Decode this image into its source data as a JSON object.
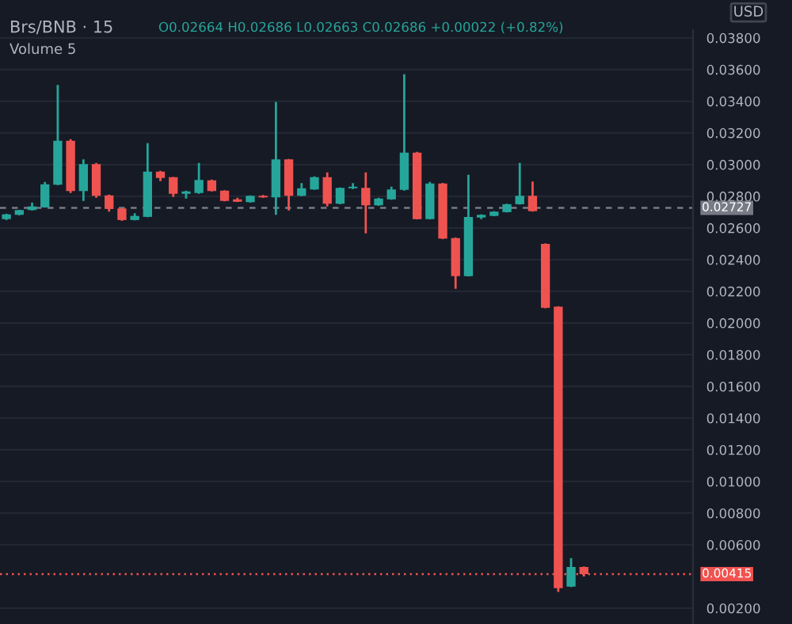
{
  "chart_data": {
    "type": "candlestick",
    "title": "Brs/BNB · 15",
    "annotations": [
      "O0.02664 H0.02686 L0.02663 C0.02686 +0.00022 (+0.82%)",
      "Volume 5",
      "USD"
    ],
    "categories": [
      null,
      null,
      null,
      null,
      null,
      null,
      null,
      null,
      null,
      null,
      null,
      null,
      null,
      null,
      null,
      null,
      null,
      null,
      null,
      null,
      null,
      null,
      null,
      null,
      null,
      null,
      null,
      null,
      null,
      null,
      null,
      null,
      null,
      null,
      null,
      null,
      null,
      null,
      null,
      null,
      null,
      null,
      null,
      null,
      null,
      null,
      null,
      null,
      null,
      null,
      null,
      null,
      null,
      null
    ],
    "ohlc": [
      [
        0.02656,
        0.0269,
        0.0265,
        0.02686
      ],
      [
        0.02683,
        0.02715,
        0.0268,
        0.02713
      ],
      [
        0.02713,
        0.0276,
        0.0271,
        0.02736
      ],
      [
        0.0273,
        0.0289,
        0.02728,
        0.02876
      ],
      [
        0.02873,
        0.03503,
        0.0287,
        0.0315
      ],
      [
        0.0315,
        0.0316,
        0.0282,
        0.02833
      ],
      [
        0.02833,
        0.03033,
        0.0277,
        0.03003
      ],
      [
        0.03003,
        0.0301,
        0.0279,
        0.02803
      ],
      [
        0.02806,
        0.0281,
        0.02703,
        0.0272
      ],
      [
        0.02723,
        0.02725,
        0.02645,
        0.0265
      ],
      [
        0.0265,
        0.02693,
        0.02648,
        0.02676
      ],
      [
        0.0267,
        0.03136,
        0.02668,
        0.02956
      ],
      [
        0.02956,
        0.0296,
        0.02896,
        0.02916
      ],
      [
        0.0292,
        0.02922,
        0.02796,
        0.02816
      ],
      [
        0.02816,
        0.02835,
        0.02786,
        0.0283
      ],
      [
        0.0282,
        0.0301,
        0.02815,
        0.02903
      ],
      [
        0.029,
        0.02905,
        0.0283,
        0.02833
      ],
      [
        0.02836,
        0.02838,
        0.02768,
        0.0277
      ],
      [
        0.0278,
        0.0279,
        0.02764,
        0.02766
      ],
      [
        0.02763,
        0.02806,
        0.0276,
        0.02803
      ],
      [
        0.02803,
        0.02808,
        0.0279,
        0.02793
      ],
      [
        0.02793,
        0.03396,
        0.02683,
        0.03033
      ],
      [
        0.03033,
        0.03036,
        0.0271,
        0.02803
      ],
      [
        0.02803,
        0.02883,
        0.028,
        0.0285
      ],
      [
        0.02843,
        0.02925,
        0.0284,
        0.0292
      ],
      [
        0.0292,
        0.0295,
        0.02736,
        0.02753
      ],
      [
        0.02753,
        0.02856,
        0.0275,
        0.02853
      ],
      [
        0.0285,
        0.02883,
        0.02846,
        0.0286
      ],
      [
        0.02853,
        0.0295,
        0.02566,
        0.02743
      ],
      [
        0.02743,
        0.0279,
        0.0274,
        0.02786
      ],
      [
        0.0278,
        0.0286,
        0.02778,
        0.02843
      ],
      [
        0.0284,
        0.0357,
        0.02836,
        0.03076
      ],
      [
        0.03076,
        0.0308,
        0.02654,
        0.02656
      ],
      [
        0.02656,
        0.0289,
        0.02654,
        0.0288
      ],
      [
        0.0288,
        0.02884,
        0.0253,
        0.02533
      ],
      [
        0.02536,
        0.0254,
        0.02216,
        0.02296
      ],
      [
        0.02296,
        0.02936,
        0.02294,
        0.0267
      ],
      [
        0.02666,
        0.02686,
        0.02656,
        0.02683
      ],
      [
        0.02676,
        0.02706,
        0.02674,
        0.02703
      ],
      [
        0.027,
        0.02753,
        0.02698,
        0.0275
      ],
      [
        0.0275,
        0.0301,
        0.02748,
        0.02803
      ],
      [
        0.02803,
        0.02893,
        0.02703,
        0.02706
      ],
      [
        0.025,
        0.02503,
        0.02093,
        0.02096
      ],
      [
        0.02103,
        0.02106,
        0.00303,
        0.00326
      ],
      [
        0.00336,
        0.00516,
        0.00333,
        0.0046
      ],
      [
        0.0046,
        0.00463,
        0.004,
        0.00415
      ],
      null,
      null,
      null,
      null,
      null,
      null,
      null,
      null
    ],
    "ylim": [
      0.001,
      0.0385
    ],
    "yticks": [
      {
        "value": 0.002,
        "label": "0.00200"
      },
      {
        "value": 0.006,
        "label": "0.00600"
      },
      {
        "value": 0.008,
        "label": "0.00800"
      },
      {
        "value": 0.01,
        "label": "0.01000"
      },
      {
        "value": 0.012,
        "label": "0.01200"
      },
      {
        "value": 0.014,
        "label": "0.01400"
      },
      {
        "value": 0.016,
        "label": "0.01600"
      },
      {
        "value": 0.018,
        "label": "0.01800"
      },
      {
        "value": 0.02,
        "label": "0.02000"
      },
      {
        "value": 0.022,
        "label": "0.02200"
      },
      {
        "value": 0.024,
        "label": "0.02400"
      },
      {
        "value": 0.026,
        "label": "0.02600"
      },
      {
        "value": 0.028,
        "label": "0.02800"
      },
      {
        "value": 0.03,
        "label": "0.03000"
      },
      {
        "value": 0.032,
        "label": "0.03200"
      },
      {
        "value": 0.034,
        "label": "0.03400"
      },
      {
        "value": 0.036,
        "label": "0.03600"
      },
      {
        "value": 0.038,
        "label": "0.03800"
      }
    ],
    "ref_lines": [
      {
        "axis": "y",
        "value": 0.02727,
        "label": "0.02727",
        "color": "#787b86",
        "line_style": "dashed"
      },
      {
        "axis": "y",
        "value": 0.00415,
        "label": "0.00415",
        "color": "#ef5350",
        "line_style": "dotted"
      }
    ],
    "grid": "y"
  }
}
